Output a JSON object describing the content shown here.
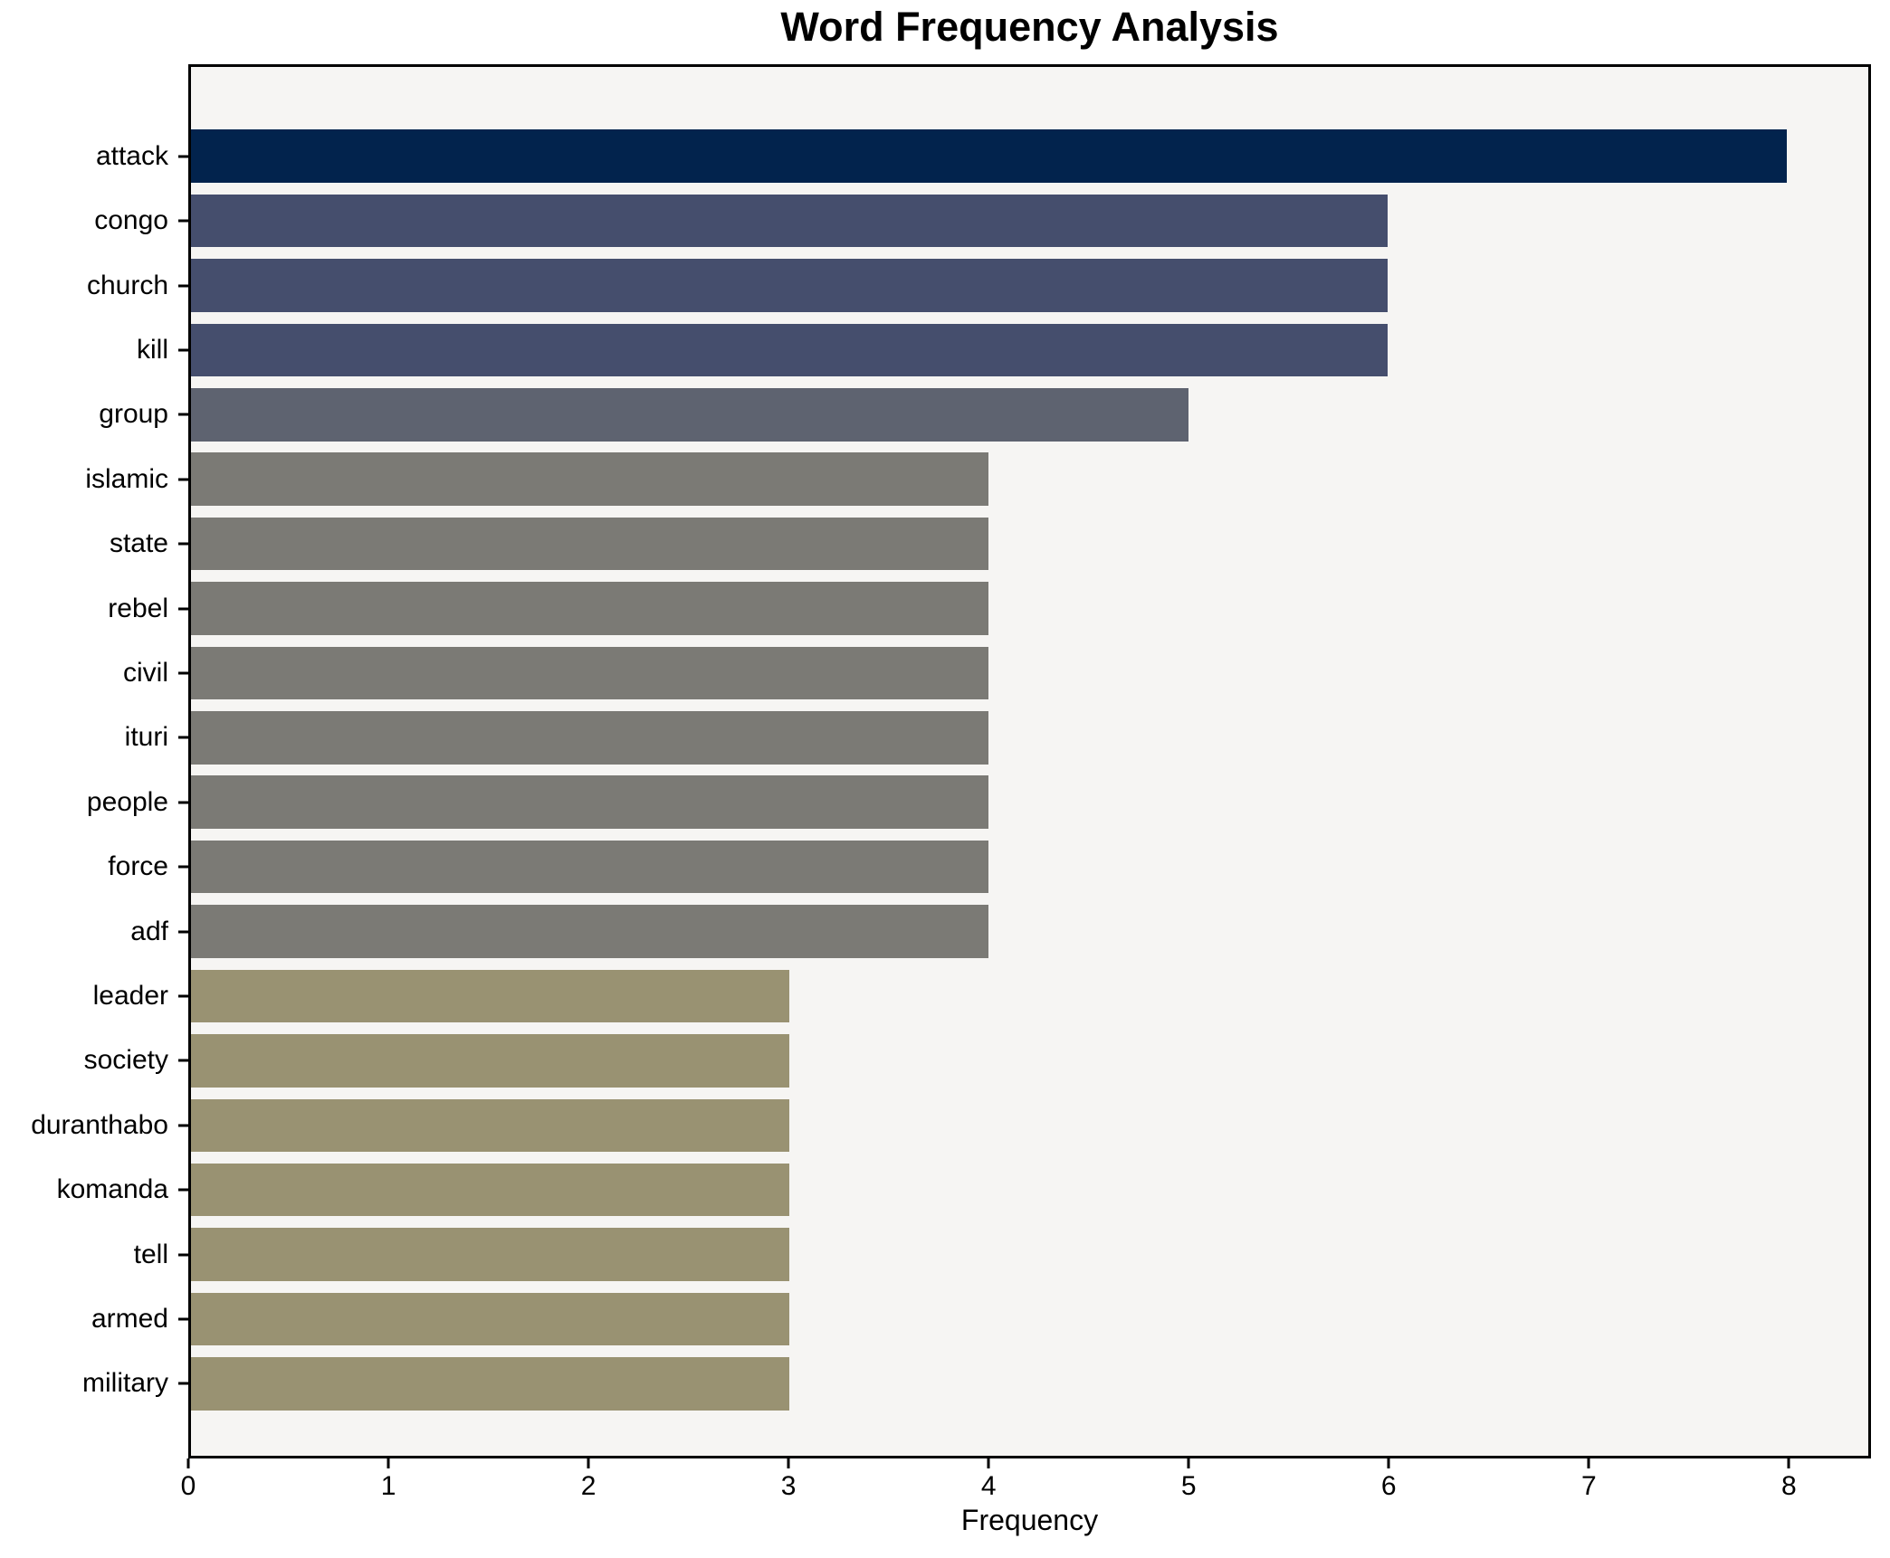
{
  "chart_data": {
    "type": "bar",
    "orientation": "horizontal",
    "title": "Word Frequency Analysis",
    "xlabel": "Frequency",
    "ylabel": "",
    "grid": false,
    "legend": false,
    "plot_background": "#f6f5f3",
    "spine_color": "#000000",
    "xlim": [
      0,
      8.41
    ],
    "x_ticks": [
      0,
      1,
      2,
      3,
      4,
      5,
      6,
      7,
      8
    ],
    "categories": [
      "attack",
      "congo",
      "church",
      "kill",
      "group",
      "islamic",
      "state",
      "rebel",
      "civil",
      "ituri",
      "people",
      "force",
      "adf",
      "leader",
      "society",
      "duranthabo",
      "komanda",
      "tell",
      "armed",
      "military"
    ],
    "values": [
      8,
      6,
      6,
      6,
      5,
      4,
      4,
      4,
      4,
      4,
      4,
      4,
      4,
      3,
      3,
      3,
      3,
      3,
      3,
      3
    ],
    "colors": [
      "#02234d",
      "#454e6d",
      "#454e6d",
      "#454e6d",
      "#5e6370",
      "#7b7a75",
      "#7b7a75",
      "#7b7a75",
      "#7b7a75",
      "#7b7a75",
      "#7b7a75",
      "#7b7a75",
      "#7b7a75",
      "#999272",
      "#999272",
      "#999272",
      "#999272",
      "#999272",
      "#999272",
      "#999272"
    ]
  }
}
